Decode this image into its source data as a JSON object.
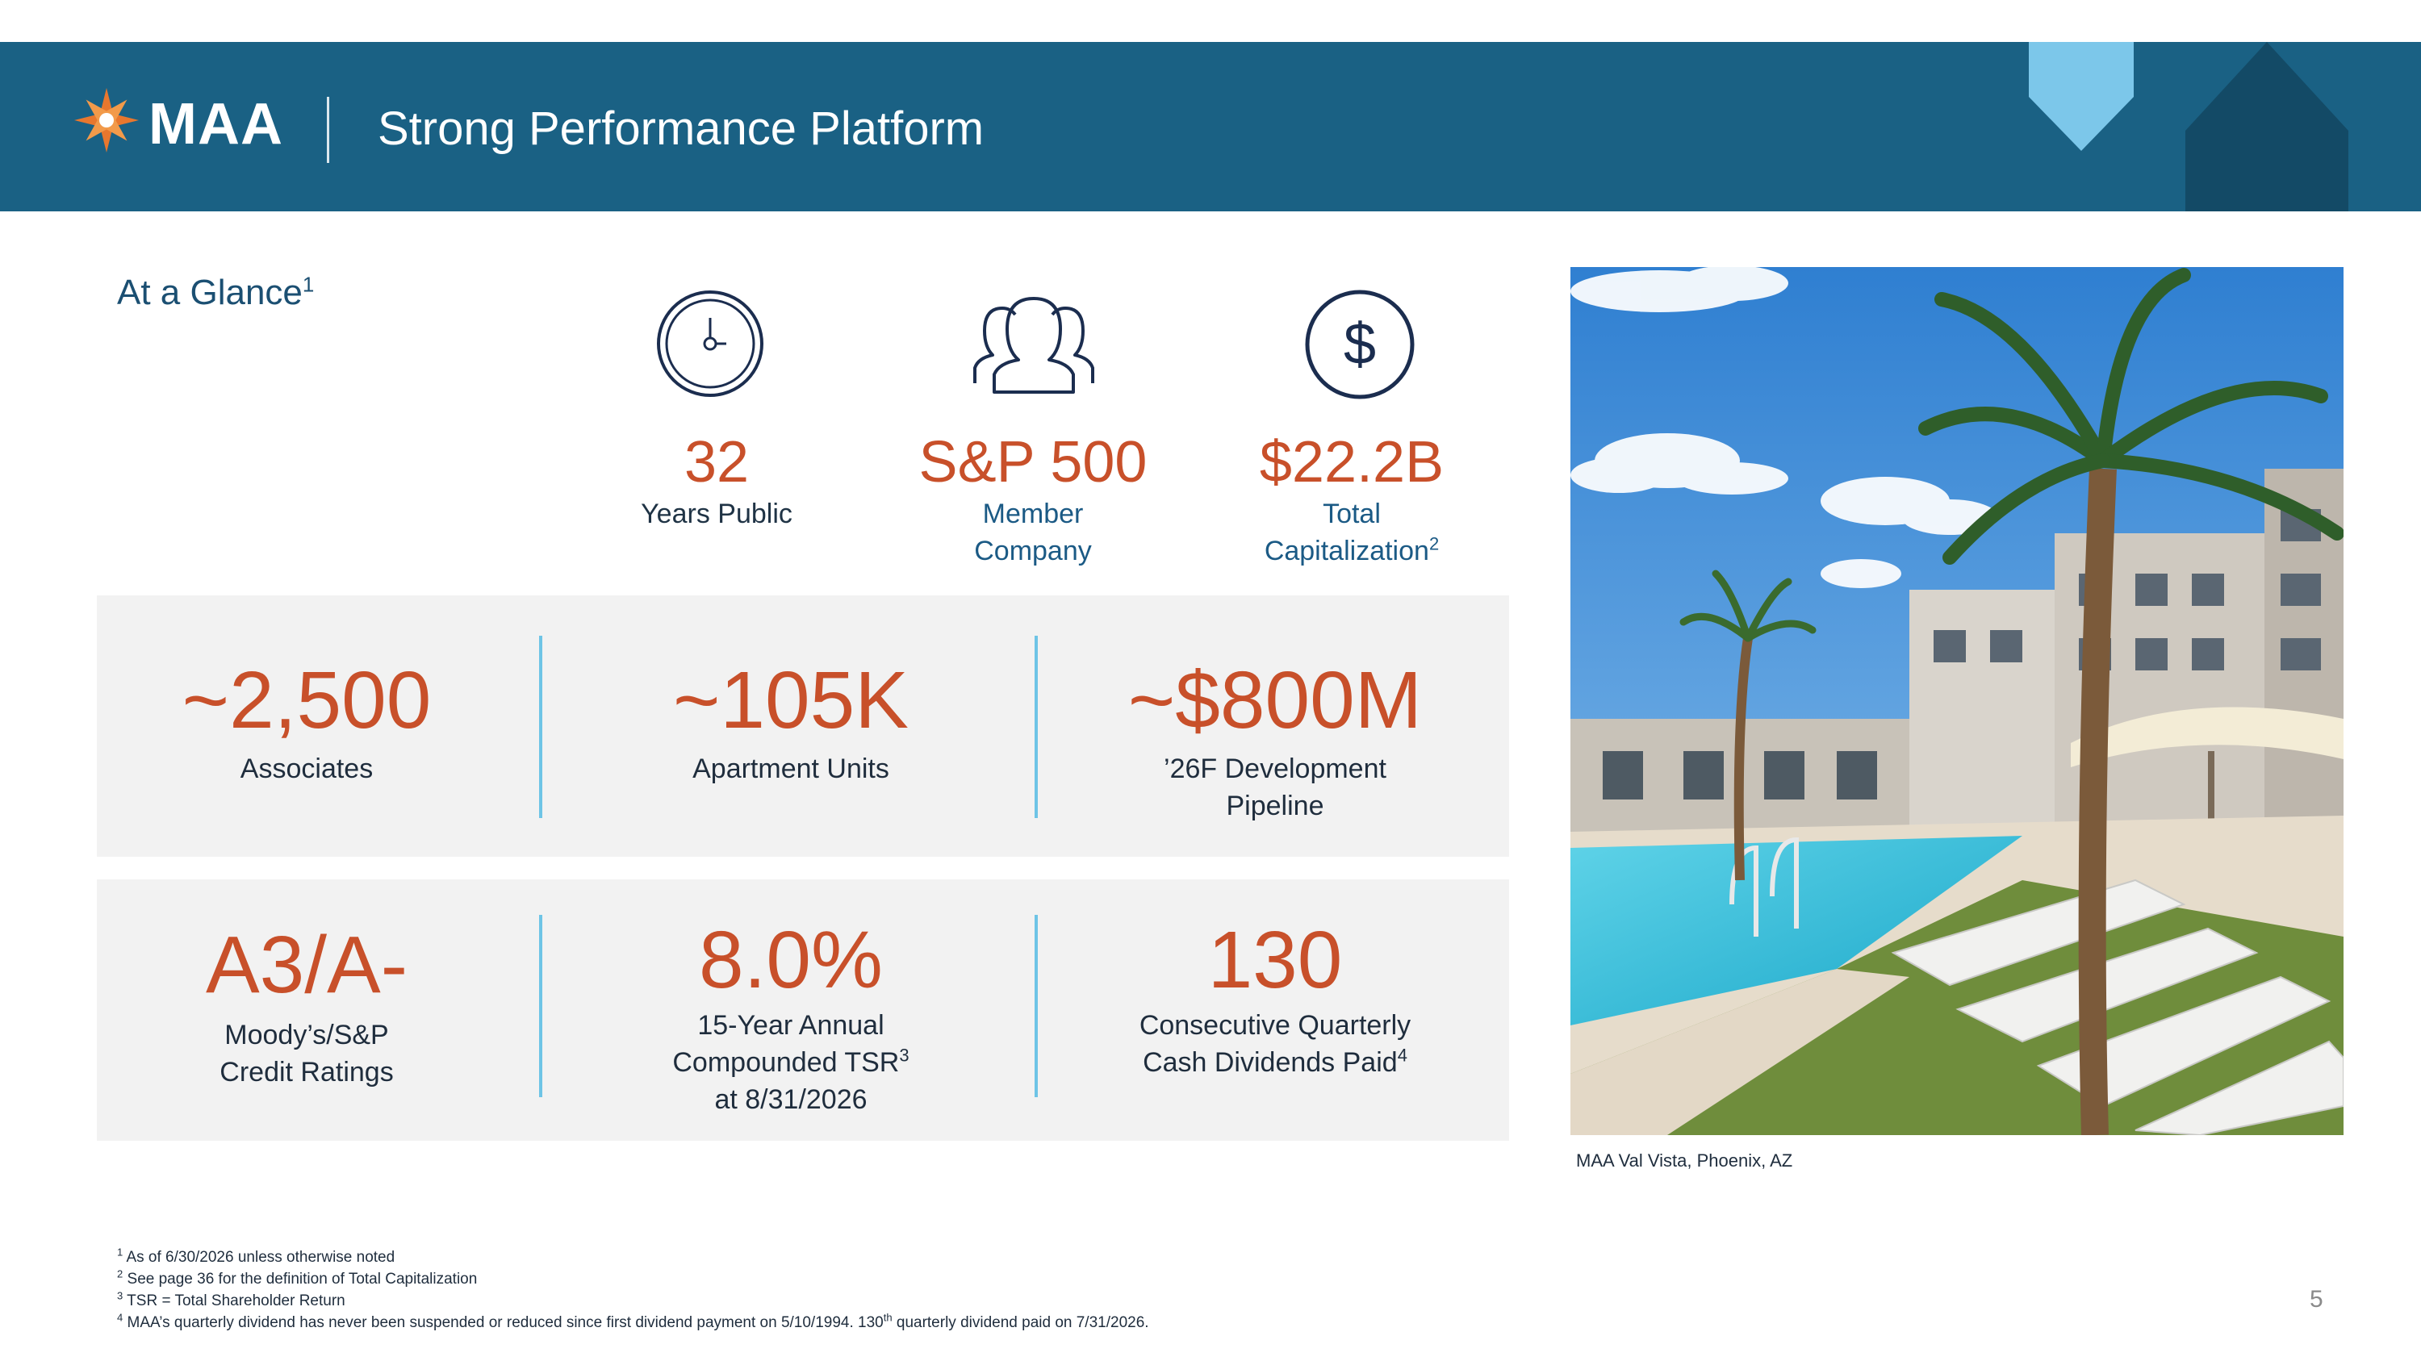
{
  "header": {
    "logo_text": "MAA",
    "title": "Strong Performance Platform"
  },
  "glance": {
    "title": "At a Glance",
    "title_sup": "1"
  },
  "top_stats": [
    {
      "icon": "clock-icon",
      "value": "32",
      "label_line1": "Years Public",
      "label_line2": "",
      "sup": ""
    },
    {
      "icon": "people-icon",
      "value": "S&P 500",
      "label_line1": "Member",
      "label_line2": "Company",
      "sup": ""
    },
    {
      "icon": "dollar-icon",
      "value": "$22.2B",
      "label_line1": "Total",
      "label_line2": "Capitalization",
      "sup": "2"
    }
  ],
  "panel1": [
    {
      "value": "~2,500",
      "line1": "Associates",
      "line2": ""
    },
    {
      "value": "~105K",
      "line1": "Apartment Units",
      "line2": ""
    },
    {
      "value": "~$800M",
      "line1": "’26F Development",
      "line2": "Pipeline"
    }
  ],
  "panel2": [
    {
      "value": "A3/A-",
      "line1": "Moody’s/S&P",
      "line2": "Credit Ratings",
      "line3": ""
    },
    {
      "value": "8.0%",
      "line1": "15-Year Annual",
      "line2": "Compounded TSR",
      "line2_sup": "3",
      "line3": "at 8/31/2026"
    },
    {
      "value": "130",
      "line1": "Consecutive Quarterly",
      "line2": "Cash Dividends Paid",
      "line2_sup": "4",
      "line3": ""
    }
  ],
  "photo": {
    "caption": "MAA Val Vista, Phoenix, AZ"
  },
  "footnotes": [
    {
      "sup": "1",
      "text": "As of 6/30/2026 unless otherwise noted"
    },
    {
      "sup": "2",
      "text": "See page 36 for the definition of Total Capitalization"
    },
    {
      "sup": "3",
      "text": "TSR = Total Shareholder Return"
    },
    {
      "sup": "4",
      "text": "MAA’s quarterly dividend has never been suspended or reduced since first dividend payment on 5/10/1994.  130",
      "sup2": "th",
      "text2": " quarterly dividend paid on 7/31/2026."
    }
  ],
  "page_number": "5",
  "colors": {
    "header_bg": "#1a6184",
    "accent_orange": "#c8502a",
    "panel_bg": "#f2f2f2",
    "divider_blue": "#6ec4e6",
    "navy": "#1b4f72"
  }
}
